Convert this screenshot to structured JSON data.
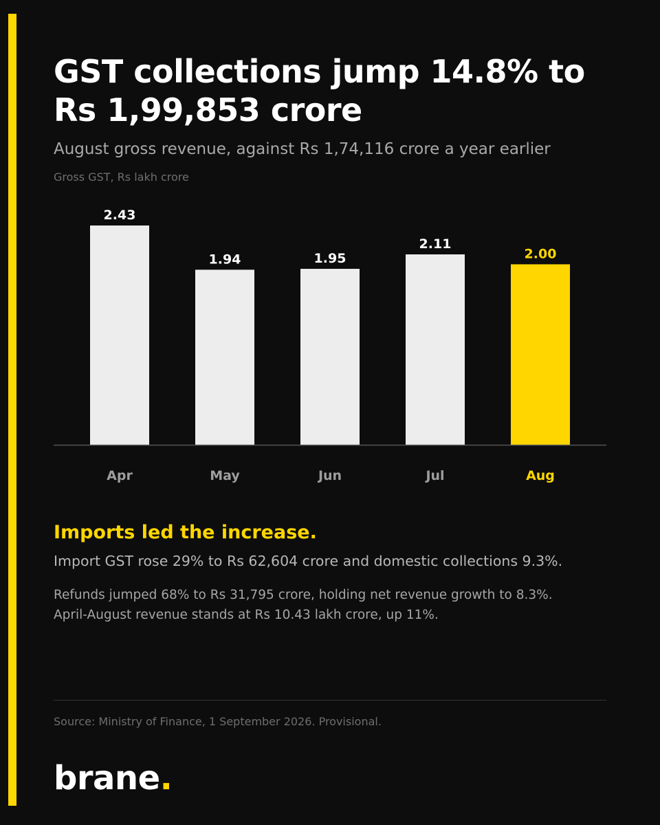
{
  "headline": {
    "line1": "GST collections jump 14.8% to",
    "line2": "Rs 1,99,853 crore"
  },
  "subhead": "August gross revenue, against Rs 1,74,116 crore a year earlier",
  "chart_data": {
    "type": "bar",
    "ylabel": "Gross GST, Rs lakh crore",
    "categories": [
      "Apr",
      "May",
      "Jun",
      "Jul",
      "Aug"
    ],
    "values": [
      2.43,
      1.94,
      1.95,
      2.11,
      2.0
    ],
    "value_labels": [
      "2.43",
      "1.94",
      "1.95",
      "2.11",
      "2.00"
    ],
    "highlight_category": "Aug",
    "ylim": [
      0,
      2.43
    ],
    "grid": false,
    "legend": "none",
    "colors": {
      "bar": "#EDEDED",
      "highlight": "#FFD600",
      "value_label": "#FFFFFF",
      "category_label": "#9E9E9E",
      "axis": "#555555"
    }
  },
  "insight": {
    "title": "Imports led the increase.",
    "lead": "Import GST rose 29% to Rs 62,604 crore and domestic collections 9.3%.",
    "detail_line1": "Refunds jumped 68% to Rs 31,795 crore, holding net revenue growth to 8.3%.",
    "detail_line2": "April-August revenue stands at Rs 10.43 lakh crore, up 11%."
  },
  "source": "Source: Ministry of Finance, 1 September 2026. Provisional.",
  "brand": {
    "name": "brane",
    "dot": "."
  },
  "colors": {
    "background": "#0D0D0D",
    "accent": "#FFD600",
    "headline": "#FFFFFF",
    "muted": "#A9A9A9"
  }
}
